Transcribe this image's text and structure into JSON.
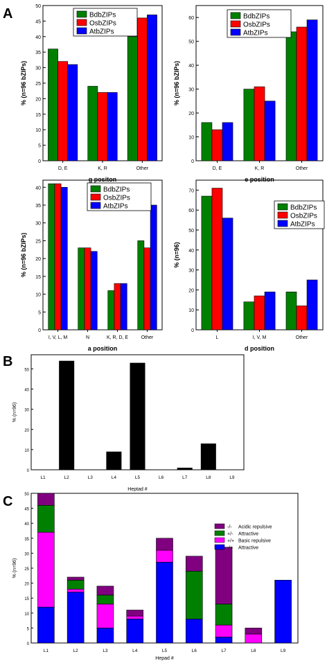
{
  "panel_letters": [
    "A",
    "B",
    "C"
  ],
  "colors": {
    "BdbZIPs": "#008000",
    "OsbZIPs": "#ff0000",
    "AtbZIPs": "#0000ff",
    "bars_B": "#000000",
    "acidic": "#800080",
    "attr_pm": "#008000",
    "basic": "#ff00ff",
    "attr_mp": "#0000ff"
  },
  "chart_data": [
    {
      "id": "g",
      "type": "bar",
      "xlabel": "g positon",
      "ylabel": "% (n=96 bZIPs)",
      "ylim": [
        0,
        50
      ],
      "yticks": [
        0,
        5,
        10,
        15,
        20,
        25,
        30,
        35,
        40,
        45,
        50
      ],
      "categories": [
        "D, E",
        "K, R",
        "Other"
      ],
      "legend_position": "top-left",
      "series": [
        {
          "name": "BdbZIPs",
          "values": [
            36,
            24,
            40
          ]
        },
        {
          "name": "OsbZIPs",
          "values": [
            32,
            22,
            46
          ]
        },
        {
          "name": "AtbZIPs",
          "values": [
            31,
            22,
            47
          ]
        }
      ]
    },
    {
      "id": "e",
      "type": "bar",
      "xlabel": "e position",
      "ylabel": "% (n=96 bZIPs)",
      "ylim": [
        0,
        65
      ],
      "yticks": [
        0,
        10,
        20,
        30,
        40,
        50,
        60
      ],
      "categories": [
        "D, E",
        "K, R",
        "Other"
      ],
      "legend_position": "top-center",
      "series": [
        {
          "name": "BdbZIPs",
          "values": [
            16,
            30,
            54
          ]
        },
        {
          "name": "OsbZIPs",
          "values": [
            13,
            31,
            56
          ]
        },
        {
          "name": "AtbZIPs",
          "values": [
            16,
            25,
            59
          ]
        }
      ]
    },
    {
      "id": "a",
      "type": "bar",
      "xlabel": "a position",
      "ylabel": "% (n=96 bZIPs)",
      "ylim": [
        0,
        42
      ],
      "yticks": [
        0,
        5,
        10,
        15,
        20,
        25,
        30,
        35,
        40
      ],
      "categories": [
        "I, V, L, M",
        "N",
        "K, R, D, E",
        "Other"
      ],
      "legend_position": "top-right",
      "series": [
        {
          "name": "BdbZIPs",
          "values": [
            41,
            23,
            11,
            25
          ]
        },
        {
          "name": "OsbZIPs",
          "values": [
            41,
            23,
            13,
            23
          ]
        },
        {
          "name": "AtbZIPs",
          "values": [
            40,
            22,
            13,
            35
          ]
        }
      ]
    },
    {
      "id": "d",
      "type": "bar",
      "xlabel": "d position",
      "ylabel": "% (n=96)",
      "ylim": [
        0,
        75
      ],
      "yticks": [
        0,
        10,
        20,
        30,
        40,
        50,
        60,
        70
      ],
      "categories": [
        "L",
        "I, V, M",
        "Other"
      ],
      "legend_position": "top-right",
      "series": [
        {
          "name": "BdbZIPs",
          "values": [
            67,
            14,
            19
          ]
        },
        {
          "name": "OsbZIPs",
          "values": [
            71,
            17,
            12
          ]
        },
        {
          "name": "AtbZIPs",
          "values": [
            56,
            19,
            25
          ]
        }
      ]
    },
    {
      "id": "B",
      "type": "bar",
      "xlabel": "Heptad #",
      "ylabel": "% (n=96)",
      "ylim": [
        0,
        57
      ],
      "yticks": [
        0,
        10,
        20,
        30,
        40,
        50
      ],
      "categories": [
        "L1",
        "L2",
        "L3",
        "L4",
        "L5",
        "L6",
        "L7",
        "L8",
        "L9"
      ],
      "values": [
        0,
        54,
        0,
        9,
        53,
        0,
        1,
        13,
        0
      ]
    },
    {
      "id": "C",
      "type": "bar",
      "stacked": true,
      "xlabel": "Hepad #",
      "ylabel": "% (n=96)",
      "ylim": [
        0,
        50
      ],
      "yticks": [
        0,
        5,
        10,
        15,
        20,
        25,
        30,
        35,
        40,
        45,
        50
      ],
      "categories": [
        "L1",
        "L2",
        "L3",
        "L4",
        "L5",
        "L6",
        "L7",
        "L8",
        "L9"
      ],
      "legend_position": "top-right",
      "series": [
        {
          "name": "-/+ Attractive",
          "values": [
            12,
            17,
            5,
            8,
            27,
            8,
            2,
            0,
            21
          ]
        },
        {
          "name": "+/+ Basic repulsive",
          "values": [
            25,
            1,
            8,
            1,
            4,
            0,
            4,
            3,
            0
          ]
        },
        {
          "name": "+/- Attractive",
          "values": [
            9,
            3,
            3,
            0,
            0,
            16,
            7,
            0,
            0
          ]
        },
        {
          "name": "-/- Acidic repulsive",
          "values": [
            4,
            1,
            3,
            2,
            4,
            5,
            19,
            2,
            0
          ]
        }
      ],
      "legend_order": [
        {
          "sym": "-/-",
          "label": "Acidic repulsive"
        },
        {
          "sym": "+/-",
          "label": "Attractive"
        },
        {
          "sym": "+/+",
          "label": "Basic repulsive"
        },
        {
          "sym": "-/+",
          "label": "Attractive"
        }
      ]
    }
  ]
}
